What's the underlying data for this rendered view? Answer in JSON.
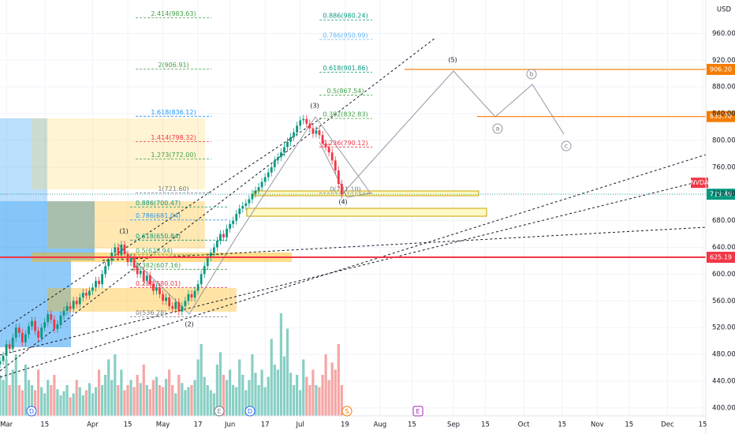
{
  "chart_data": {
    "type": "candlestick",
    "symbol": "NVDA",
    "currency": "USD",
    "up_color": "#089981",
    "down_color": "#f23645",
    "volume_up_color": "#88cfc4",
    "volume_down_color": "#f5a6a4",
    "xlim": [
      0,
      221
    ],
    "ylim": [
      388,
      1010
    ],
    "vlim": [
      0,
      100
    ],
    "xticks": [
      {
        "value": 2,
        "label": "Mar"
      },
      {
        "value": 14,
        "label": "15"
      },
      {
        "value": 29,
        "label": "Apr"
      },
      {
        "value": 40,
        "label": "15"
      },
      {
        "value": 51,
        "label": "May"
      },
      {
        "value": 62,
        "label": "17"
      },
      {
        "value": 72,
        "label": "Jun"
      },
      {
        "value": 83,
        "label": "17"
      },
      {
        "value": 94,
        "label": "Jul"
      },
      {
        "value": 108,
        "label": "19"
      },
      {
        "value": 119,
        "label": "Aug"
      },
      {
        "value": 129,
        "label": "15"
      },
      {
        "value": 142,
        "label": "Sep"
      },
      {
        "value": 152,
        "label": "15"
      },
      {
        "value": 164,
        "label": "Oct"
      },
      {
        "value": 176,
        "label": "15"
      },
      {
        "value": 187,
        "label": "Nov"
      },
      {
        "value": 197,
        "label": "15"
      },
      {
        "value": 209,
        "label": "Dec"
      },
      {
        "value": 220,
        "label": "15"
      }
    ],
    "yticks": [
      {
        "value": 960,
        "label": "960.00"
      },
      {
        "value": 920,
        "label": "920.00"
      },
      {
        "value": 880,
        "label": "880.00"
      },
      {
        "value": 840,
        "label": "840.00"
      },
      {
        "value": 800,
        "label": "800.00"
      },
      {
        "value": 760,
        "label": "760.00"
      },
      {
        "value": 720,
        "label": "720.00"
      },
      {
        "value": 680,
        "label": "680.00"
      },
      {
        "value": 640,
        "label": "640.00"
      },
      {
        "value": 600,
        "label": "600.00"
      },
      {
        "value": 560,
        "label": "560.00"
      },
      {
        "value": 520,
        "label": "520.00"
      },
      {
        "value": 480,
        "label": "480.00"
      },
      {
        "value": 440,
        "label": "440.00"
      },
      {
        "value": 400,
        "label": "400.00"
      }
    ],
    "ohlc": [
      [
        465,
        476,
        459,
        470
      ],
      [
        470,
        484,
        464,
        478
      ],
      [
        478,
        501,
        472,
        495
      ],
      [
        495,
        501,
        482,
        488
      ],
      [
        488,
        511,
        482,
        505
      ],
      [
        505,
        526,
        499,
        520
      ],
      [
        520,
        526,
        506,
        512
      ],
      [
        512,
        518,
        492,
        498
      ],
      [
        498,
        516,
        492,
        510
      ],
      [
        510,
        528,
        504,
        522
      ],
      [
        522,
        536,
        516,
        530
      ],
      [
        530,
        536,
        509,
        515
      ],
      [
        515,
        521,
        499,
        505
      ],
      [
        505,
        526,
        499,
        520
      ],
      [
        520,
        534,
        514,
        528
      ],
      [
        528,
        546,
        522,
        540
      ],
      [
        540,
        546,
        526,
        532
      ],
      [
        532,
        538,
        512,
        518
      ],
      [
        518,
        531,
        512,
        525
      ],
      [
        525,
        544,
        519,
        538
      ],
      [
        538,
        551,
        532,
        545
      ],
      [
        545,
        558,
        539,
        552
      ],
      [
        552,
        558,
        542,
        548
      ],
      [
        548,
        566,
        542,
        560
      ],
      [
        560,
        566,
        549,
        555
      ],
      [
        555,
        571,
        549,
        565
      ],
      [
        565,
        578,
        559,
        572
      ],
      [
        572,
        578,
        562,
        568
      ],
      [
        568,
        581,
        562,
        575
      ],
      [
        575,
        586,
        569,
        580
      ],
      [
        580,
        596,
        574,
        590
      ],
      [
        590,
        596,
        579,
        585
      ],
      [
        585,
        606,
        579,
        600
      ],
      [
        600,
        618,
        594,
        612
      ],
      [
        612,
        626,
        606,
        620
      ],
      [
        620,
        638,
        614,
        632
      ],
      [
        632,
        646,
        626,
        640
      ],
      [
        640,
        646,
        622,
        628
      ],
      [
        628,
        650,
        622,
        644
      ],
      [
        644,
        650,
        624,
        630
      ],
      [
        630,
        636,
        612,
        618
      ],
      [
        618,
        631,
        612,
        625
      ],
      [
        625,
        631,
        604,
        610
      ],
      [
        610,
        616,
        594,
        600
      ],
      [
        600,
        611,
        594,
        605
      ],
      [
        605,
        611,
        584,
        590
      ],
      [
        590,
        604,
        584,
        598
      ],
      [
        598,
        604,
        579,
        585
      ],
      [
        585,
        591,
        569,
        575
      ],
      [
        575,
        586,
        569,
        580
      ],
      [
        580,
        586,
        564,
        570
      ],
      [
        570,
        576,
        554,
        560
      ],
      [
        560,
        571,
        554,
        565
      ],
      [
        565,
        571,
        546,
        552
      ],
      [
        552,
        558,
        542,
        548
      ],
      [
        548,
        564,
        542,
        558
      ],
      [
        558,
        564,
        538,
        544
      ],
      [
        544,
        558,
        538,
        552
      ],
      [
        552,
        566,
        546,
        560
      ],
      [
        560,
        576,
        554,
        570
      ],
      [
        570,
        576,
        559,
        565
      ],
      [
        565,
        581,
        559,
        575
      ],
      [
        575,
        591,
        569,
        585
      ],
      [
        585,
        606,
        579,
        600
      ],
      [
        600,
        618,
        594,
        612
      ],
      [
        612,
        631,
        606,
        625
      ],
      [
        625,
        638,
        619,
        632
      ],
      [
        632,
        646,
        626,
        640
      ],
      [
        640,
        656,
        634,
        650
      ],
      [
        650,
        666,
        644,
        660
      ],
      [
        660,
        666,
        649,
        655
      ],
      [
        655,
        674,
        649,
        668
      ],
      [
        668,
        681,
        662,
        675
      ],
      [
        675,
        686,
        669,
        680
      ],
      [
        680,
        696,
        674,
        690
      ],
      [
        690,
        704,
        684,
        698
      ],
      [
        698,
        708,
        692,
        702
      ],
      [
        702,
        712,
        696,
        706
      ],
      [
        706,
        718,
        700,
        712
      ],
      [
        712,
        726,
        706,
        720
      ],
      [
        720,
        731,
        714,
        725
      ],
      [
        725,
        736,
        719,
        730
      ],
      [
        730,
        744,
        724,
        738
      ],
      [
        738,
        751,
        732,
        745
      ],
      [
        745,
        758,
        739,
        752
      ],
      [
        752,
        766,
        746,
        760
      ],
      [
        760,
        776,
        754,
        770
      ],
      [
        770,
        781,
        764,
        775
      ],
      [
        775,
        788,
        769,
        782
      ],
      [
        782,
        796,
        776,
        790
      ],
      [
        790,
        804,
        784,
        798
      ],
      [
        798,
        811,
        792,
        805
      ],
      [
        805,
        818,
        799,
        812
      ],
      [
        812,
        828,
        806,
        822
      ],
      [
        822,
        836,
        816,
        830
      ],
      [
        830,
        838,
        824,
        832
      ],
      [
        832,
        838,
        819,
        825
      ],
      [
        825,
        831,
        812,
        818
      ],
      [
        818,
        824,
        804,
        810
      ],
      [
        810,
        821,
        804,
        815
      ],
      [
        815,
        821,
        802,
        808
      ],
      [
        808,
        814,
        789,
        795
      ],
      [
        795,
        801,
        784,
        790
      ],
      [
        790,
        796,
        776,
        782
      ],
      [
        782,
        788,
        764,
        770
      ],
      [
        770,
        776,
        749,
        755
      ],
      [
        755,
        761,
        729,
        735
      ],
      [
        735,
        741,
        713,
        719.49
      ]
    ],
    "volume": [
      40,
      35,
      55,
      30,
      45,
      60,
      30,
      25,
      50,
      35,
      30,
      25,
      45,
      28,
      22,
      35,
      30,
      40,
      26,
      20,
      24,
      30,
      18,
      22,
      35,
      28,
      20,
      25,
      32,
      22,
      28,
      45,
      30,
      40,
      55,
      35,
      60,
      30,
      45,
      25,
      30,
      35,
      28,
      40,
      32,
      50,
      30,
      26,
      35,
      38,
      30,
      28,
      36,
      45,
      30,
      22,
      40,
      32,
      25,
      28,
      30,
      35,
      55,
      70,
      38,
      30,
      25,
      22,
      50,
      62,
      40,
      35,
      45,
      30,
      28,
      55,
      40,
      25,
      35,
      60,
      42,
      30,
      45,
      28,
      38,
      75,
      50,
      45,
      100,
      58,
      85,
      42,
      30,
      40,
      25,
      55,
      38,
      30,
      45,
      30,
      28,
      40,
      60,
      35,
      52,
      45,
      70,
      30
    ],
    "fib_left": [
      {
        "label": "2.414(983.63)",
        "value": 983.63,
        "color": "#43a047"
      },
      {
        "label": "2(906.91)",
        "value": 906.91,
        "color": "#43a047"
      },
      {
        "label": "1.618(836.12)",
        "value": 836.12,
        "color": "#2196f3"
      },
      {
        "label": "1.414(798.32)",
        "value": 798.32,
        "color": "#f23645"
      },
      {
        "label": "1.273(772.00)",
        "value": 772.0,
        "color": "#43a047"
      },
      {
        "label": "1(721.60)",
        "value": 721.6,
        "color": "#787b86"
      }
    ],
    "fib_right": [
      {
        "label": "0.886(980.24)",
        "value": 980.24,
        "color": "#089981"
      },
      {
        "label": "0.786(950.99)",
        "value": 950.99,
        "color": "#64b5f6"
      },
      {
        "label": "0.618(901.86)",
        "value": 901.86,
        "color": "#089981"
      },
      {
        "label": "0.5(867.54)",
        "value": 867.54,
        "color": "#43a047"
      },
      {
        "label": "0.382(832.83)",
        "value": 832.83,
        "color": "#43a047"
      },
      {
        "label": "0.236(790.12)",
        "value": 790.12,
        "color": "#f23645"
      },
      {
        "label": "0(721.10)",
        "value": 721.1,
        "color": "#787b86"
      }
    ],
    "fib_lower": [
      {
        "label": "0.886(700.47)",
        "value": 700.47,
        "color": "#089981"
      },
      {
        "label": "0.786(681.04)",
        "value": 681.04,
        "color": "#2196f3"
      },
      {
        "label": "0.618(650.84)",
        "value": 650.84,
        "color": "#089981"
      },
      {
        "label": "0.5(628.94)",
        "value": 628.94,
        "color": "#43a047"
      },
      {
        "label": "0.382(607.16)",
        "value": 607.16,
        "color": "#43a047"
      },
      {
        "label": "0.236(580.01)",
        "value": 580.01,
        "color": "#f23645"
      },
      {
        "label": "0(536.28)",
        "value": 536.28,
        "color": "#787b86"
      }
    ],
    "price_tags": [
      {
        "value": 906.2,
        "label": "906.20",
        "color": "#f57c00"
      },
      {
        "value": 835.7,
        "label": "835.70",
        "color": "#f57c00"
      },
      {
        "value": 719.49,
        "label": "719.49",
        "color": "#089981"
      },
      {
        "value": 625.19,
        "label": "625.19",
        "color": "#f23645"
      }
    ],
    "wave_labels": [
      "(1)",
      "(2)",
      "(3)",
      "(4)",
      "(5)",
      "a",
      "b",
      "c"
    ],
    "events": [
      {
        "label": "D",
        "color": "#2962ff"
      },
      {
        "label": "E",
        "color": "#787b86"
      },
      {
        "label": "D",
        "color": "#2962ff"
      },
      {
        "label": "S",
        "color": "#f57c00"
      },
      {
        "label": "E",
        "color": "#9c27b0"
      }
    ]
  }
}
